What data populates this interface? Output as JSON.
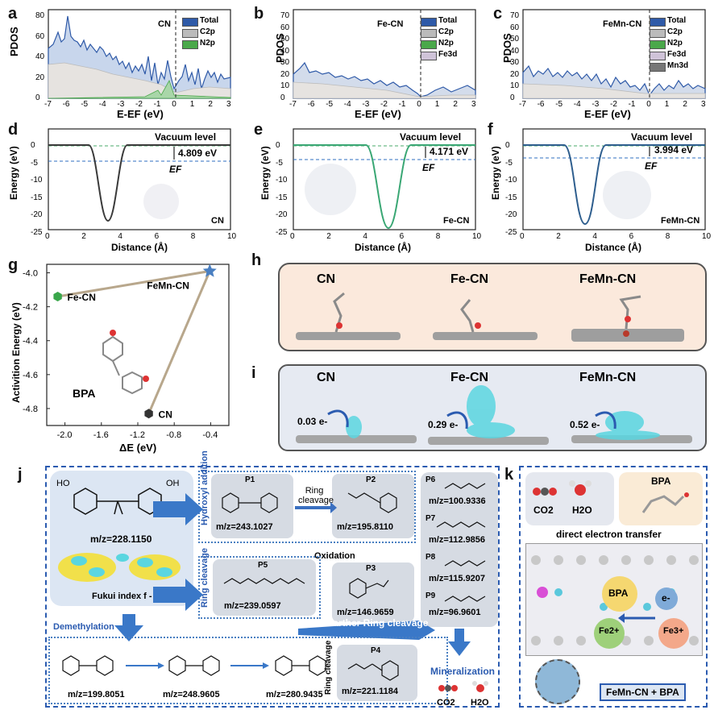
{
  "panel_letters": {
    "a": "a",
    "b": "b",
    "c": "c",
    "d": "d",
    "e": "e",
    "f": "f",
    "g": "g",
    "h": "h",
    "i": "i",
    "j": "j",
    "k": "k"
  },
  "pdos_panels": [
    {
      "id": "a",
      "title": "CN",
      "legend": [
        "Total",
        "C2p",
        "N2p"
      ],
      "legend_colors": [
        "#2f5aa8",
        "#bbbbbb",
        "#4aa84a"
      ]
    },
    {
      "id": "b",
      "title": "Fe-CN",
      "legend": [
        "Total",
        "C2p",
        "N2p",
        "Fe3d"
      ],
      "legend_colors": [
        "#2f5aa8",
        "#bbbbbb",
        "#4aa84a",
        "#cfc3d8"
      ]
    },
    {
      "id": "c",
      "title": "FeMn-CN",
      "legend": [
        "Total",
        "C2p",
        "N2p",
        "Fe3d",
        "Mn3d"
      ],
      "legend_colors": [
        "#2f5aa8",
        "#bbbbbb",
        "#4aa84a",
        "#cfc3d8",
        "#777777"
      ]
    }
  ],
  "pdos_axis": {
    "ylabel": "PDOS",
    "xlabel": "E-EF (eV)",
    "xticks": [
      "-7",
      "-6",
      "-5",
      "-4",
      "-3",
      "-2",
      "-1",
      "0",
      "1",
      "2",
      "3"
    ],
    "a_yticks": [
      "0",
      "20",
      "40",
      "60",
      "80"
    ],
    "bc_yticks": [
      "0",
      "10",
      "20",
      "30",
      "40",
      "50",
      "60",
      "70"
    ]
  },
  "workfunction_panels": [
    {
      "id": "d",
      "label": "CN",
      "value": "4.809 eV",
      "vacuum": "Vacuum level",
      "ef": "EF",
      "color": "#3a3a3a"
    },
    {
      "id": "e",
      "label": "Fe-CN",
      "value": "4.171 eV",
      "vacuum": "Vacuum level",
      "ef": "EF",
      "color": "#3aa774"
    },
    {
      "id": "f",
      "label": "FeMn-CN",
      "value": "3.994 eV",
      "vacuum": "Vacuum level",
      "ef": "EF",
      "color": "#2e5e8e"
    }
  ],
  "wf_axis": {
    "ylabel": "Energy (eV)",
    "xlabel": "Distance (Å)",
    "xticks": [
      "0",
      "2",
      "4",
      "6",
      "8",
      "10"
    ],
    "yticks": [
      "0",
      "-5",
      "-10",
      "-15",
      "-20",
      "-25"
    ]
  },
  "chart_data": [
    {
      "type": "scatter",
      "panel": "g",
      "xlabel": "ΔE (eV)",
      "ylabel": "Activition Energy (eV)",
      "xlim": [
        -2.2,
        -0.2
      ],
      "ylim": [
        -4.9,
        -3.95
      ],
      "xticks": [
        "-2.0",
        "-1.6",
        "-1.2",
        "-0.8",
        "-0.4"
      ],
      "yticks": [
        "-4.0",
        "-4.2",
        "-4.4",
        "-4.6",
        "-4.8"
      ],
      "points": [
        {
          "name": "Fe-CN",
          "x": -2.08,
          "y": -4.14,
          "color": "#39a64a"
        },
        {
          "name": "FeMn-CN",
          "x": -0.41,
          "y": -3.99,
          "color": "#4a7fc1"
        },
        {
          "name": "CN",
          "x": -1.08,
          "y": -4.83,
          "color": "#333333"
        }
      ],
      "annotation": "BPA"
    }
  ],
  "adsorption_labels": {
    "h": [
      "CN",
      "Fe-CN",
      "FeMn-CN"
    ],
    "i": [
      "CN",
      "Fe-CN",
      "FeMn-CN"
    ],
    "charges": [
      "0.03 e-",
      "0.29 e-",
      "0.52 e-"
    ]
  },
  "pathway": {
    "bpa_mz": "m/z=228.1150",
    "fukui": "Fukui index f -",
    "hydroxyl": "Hydroxyl addition",
    "ring_cleavage_left": "Ring cleavage",
    "ring_cleavage_mid": "Ring cleavage",
    "oxidation": "Oxidation",
    "demethylation": "Demethylation",
    "farther": "Farther Ring cleavage",
    "mineralization": "Mineralization",
    "ring_cleavage_bottom": "Ring cleavage",
    "co2": "CO2",
    "h2o": "H2O",
    "p1": {
      "name": "P1",
      "mz": "m/z=243.1027"
    },
    "p2": {
      "name": "P2",
      "mz": "m/z=195.8110"
    },
    "p3": {
      "name": "P3",
      "mz": "m/z=146.9659"
    },
    "p4": {
      "name": "P4",
      "mz": "m/z=221.1184"
    },
    "p5": {
      "name": "P5",
      "mz": "m/z=239.0597"
    },
    "p6": {
      "name": "P6",
      "mz": "m/z=100.9336"
    },
    "p7": {
      "name": "P7",
      "mz": "m/z=112.9856"
    },
    "p8": {
      "name": "P8",
      "mz": "m/z=115.9207"
    },
    "p9": {
      "name": "P9",
      "mz": "m/z=96.9601"
    },
    "bottom_mz": [
      "m/z=199.8051",
      "m/z=248.9605",
      "m/z=280.9435"
    ]
  },
  "panel_k": {
    "co2": "CO2",
    "h2o": "H2O",
    "bpa": "BPA",
    "det": "direct electron transfer",
    "bpa_ball": "BPA",
    "e": "e-",
    "fe2": "Fe2+",
    "fe3": "Fe3+",
    "caption": "FeMn-CN + BPA"
  }
}
